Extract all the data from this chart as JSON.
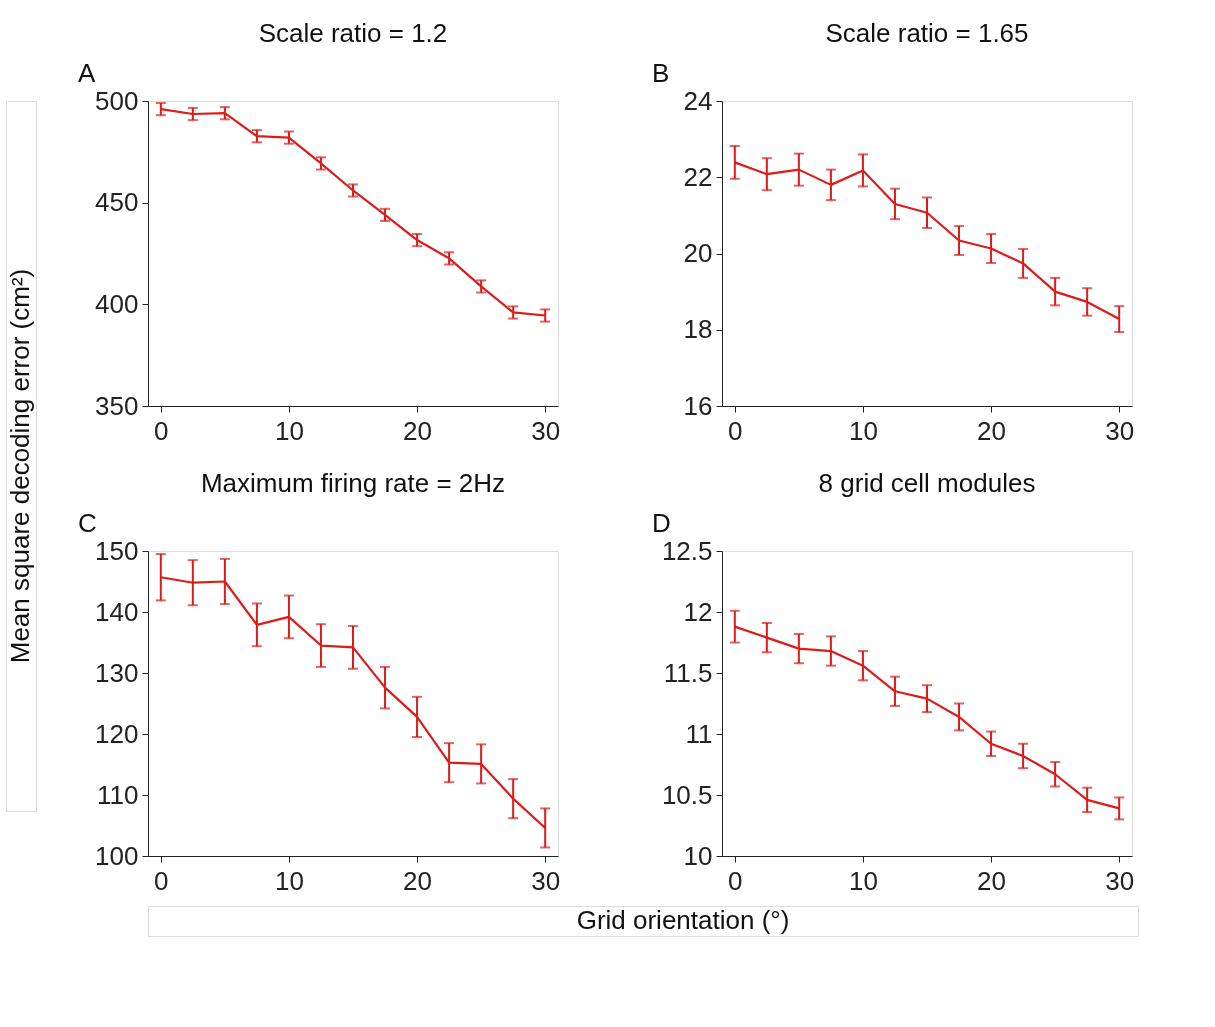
{
  "chart_data": [
    {
      "type": "line",
      "title": "Scale ratio = 1.2",
      "annotations": [
        "A"
      ],
      "ylabel": "Mean square decoding error (cm²)",
      "x": [
        0,
        2.5,
        5,
        7.5,
        10,
        12.5,
        15,
        17.5,
        20,
        22.5,
        25,
        27.5,
        30
      ],
      "xlim": [
        -1,
        31
      ],
      "xticks": [
        0,
        10,
        20,
        30
      ],
      "ylim": [
        350,
        500
      ],
      "yticks": [
        350,
        400,
        450,
        500
      ],
      "grid": false,
      "series": [
        {
          "color": "#dd1c1a",
          "values": [
            496,
            493.6,
            494,
            482.7,
            482,
            469.3,
            456,
            444,
            431.6,
            422.6,
            408.8,
            396,
            394.5
          ],
          "errors": [
            3,
            3,
            3,
            3,
            3,
            3,
            3,
            3,
            3,
            3,
            3,
            3,
            3
          ]
        }
      ]
    },
    {
      "type": "line",
      "title": "Scale ratio = 1.65",
      "annotations": [
        "B"
      ],
      "x": [
        0,
        2.5,
        5,
        7.5,
        10,
        12.5,
        15,
        17.5,
        20,
        22.5,
        25,
        27.5,
        30
      ],
      "xlim": [
        -1,
        31
      ],
      "xticks": [
        0,
        10,
        20,
        30
      ],
      "ylim": [
        16,
        24
      ],
      "yticks": [
        16,
        18,
        20,
        22,
        24
      ],
      "grid": false,
      "series": [
        {
          "color": "#dd1c1a",
          "values": [
            22.39,
            22.08,
            22.2,
            21.8,
            22.18,
            21.3,
            21.07,
            20.34,
            20.13,
            19.74,
            19.0,
            18.73,
            18.28
          ],
          "errors": [
            0.43,
            0.42,
            0.42,
            0.4,
            0.42,
            0.4,
            0.4,
            0.38,
            0.38,
            0.38,
            0.36,
            0.36,
            0.34
          ]
        }
      ]
    },
    {
      "type": "line",
      "title": "Maximum firing rate = 2Hz",
      "annotations": [
        "C"
      ],
      "xlabel": "Grid orientation (°)",
      "x": [
        0,
        2.5,
        5,
        7.5,
        10,
        12.5,
        15,
        17.5,
        20,
        22.5,
        25,
        27.5,
        30
      ],
      "xlim": [
        -1,
        31
      ],
      "xticks": [
        0,
        10,
        20,
        30
      ],
      "ylim": [
        100,
        150
      ],
      "yticks": [
        100,
        110,
        120,
        130,
        140,
        150
      ],
      "grid": false,
      "series": [
        {
          "color": "#dd1c1a",
          "values": [
            145.7,
            144.8,
            145,
            137.9,
            139.2,
            134.5,
            134.2,
            127.6,
            122.8,
            115.3,
            115.1,
            109.4,
            104.6
          ],
          "errors": [
            3.8,
            3.7,
            3.7,
            3.5,
            3.5,
            3.5,
            3.5,
            3.4,
            3.3,
            3.2,
            3.2,
            3.2,
            3.2
          ]
        }
      ]
    },
    {
      "type": "line",
      "title": "8 grid cell modules",
      "annotations": [
        "D"
      ],
      "x": [
        0,
        2.5,
        5,
        7.5,
        10,
        12.5,
        15,
        17.5,
        20,
        22.5,
        25,
        27.5,
        30
      ],
      "xlim": [
        -1,
        31
      ],
      "xticks": [
        0,
        10,
        20,
        30
      ],
      "ylim": [
        10,
        12.5
      ],
      "yticks": [
        10,
        10.5,
        11,
        11.5,
        12,
        12.5
      ],
      "grid": false,
      "series": [
        {
          "color": "#dd1c1a",
          "values": [
            11.88,
            11.79,
            11.7,
            11.68,
            11.56,
            11.35,
            11.29,
            11.14,
            10.92,
            10.82,
            10.67,
            10.46,
            10.39
          ],
          "errors": [
            0.13,
            0.12,
            0.12,
            0.12,
            0.12,
            0.12,
            0.11,
            0.11,
            0.1,
            0.1,
            0.1,
            0.1,
            0.09
          ]
        }
      ]
    }
  ]
}
